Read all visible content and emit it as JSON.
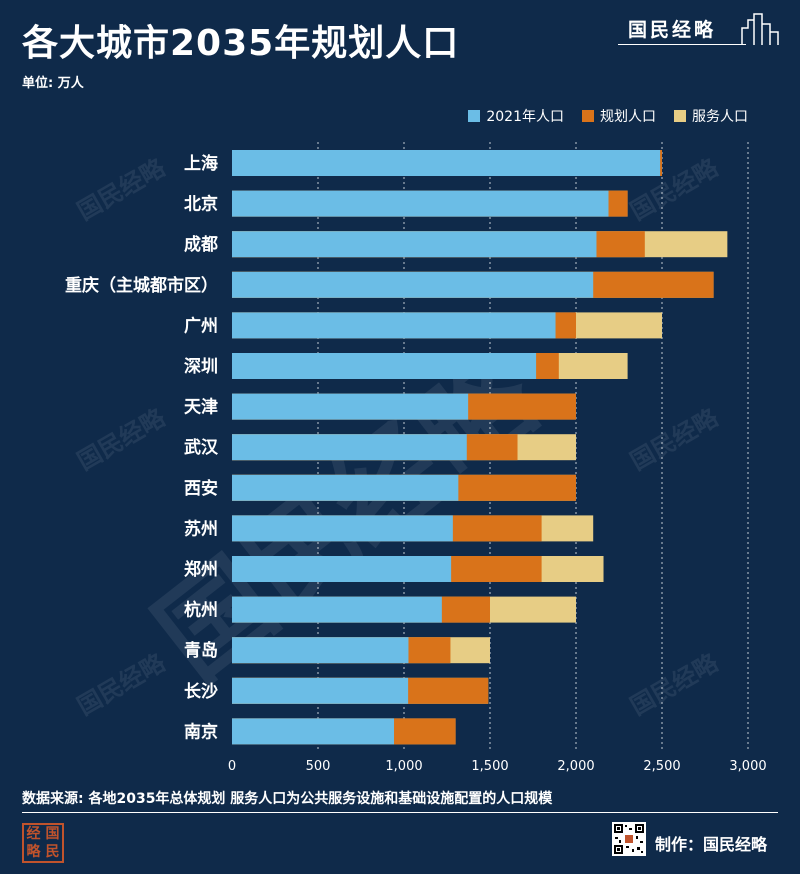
{
  "header": {
    "title": "各大城市2035年规划人口",
    "unit": "单位: 万人",
    "brand": "国民经略"
  },
  "colors": {
    "background": "#0f2a4a",
    "pop_2021": "#6bbde6",
    "planned": "#d9731a",
    "service": "#e7cd85"
  },
  "chart_data": {
    "type": "bar",
    "orientation": "horizontal",
    "stacked": false,
    "overlapping": true,
    "title": "各大城市2035年规划人口",
    "xlabel": "",
    "ylabel": "万人",
    "xlim": [
      0,
      3000
    ],
    "xticks": [
      0,
      500,
      1000,
      1500,
      2000,
      2500,
      3000
    ],
    "xtick_labels": [
      "0",
      "500",
      "1,000",
      "1,500",
      "2,000",
      "2,500",
      "3,000"
    ],
    "grid": "vertical dotted",
    "legend": "top-right",
    "categories": [
      "上海",
      "北京",
      "成都",
      "重庆（主城都市区）",
      "广州",
      "深圳",
      "天津",
      "武汉",
      "西安",
      "苏州",
      "郑州",
      "杭州",
      "青岛",
      "长沙",
      "南京"
    ],
    "series": [
      {
        "name": "服务人口",
        "values": [
          2500,
          2300,
          2880,
          2800,
          2500,
          2300,
          2000,
          2000,
          2000,
          2100,
          2160,
          2000,
          1500,
          1490,
          1300
        ]
      },
      {
        "name": "规划人口",
        "values": [
          2500,
          2300,
          2400,
          2800,
          2000,
          1900,
          2000,
          1660,
          2000,
          1800,
          1800,
          1500,
          1270,
          1490,
          1300
        ]
      },
      {
        "name": "2021年人口",
        "values": [
          2489,
          2189,
          2119,
          2100,
          1881,
          1768,
          1373,
          1365,
          1316,
          1284,
          1274,
          1220,
          1026,
          1024,
          942
        ]
      }
    ]
  },
  "legend": {
    "items": [
      {
        "label": "2021年人口",
        "color": "#6bbde6"
      },
      {
        "label": "规划人口",
        "color": "#d9731a"
      },
      {
        "label": "服务人口",
        "color": "#e7cd85"
      }
    ]
  },
  "footer": {
    "source": "数据来源: 各地2035年总体规划  服务人口为公共服务设施和基础设施配置的人口规模",
    "credit": "制作：国民经略",
    "logo_chars": [
      "经",
      "国",
      "略",
      "民"
    ]
  }
}
